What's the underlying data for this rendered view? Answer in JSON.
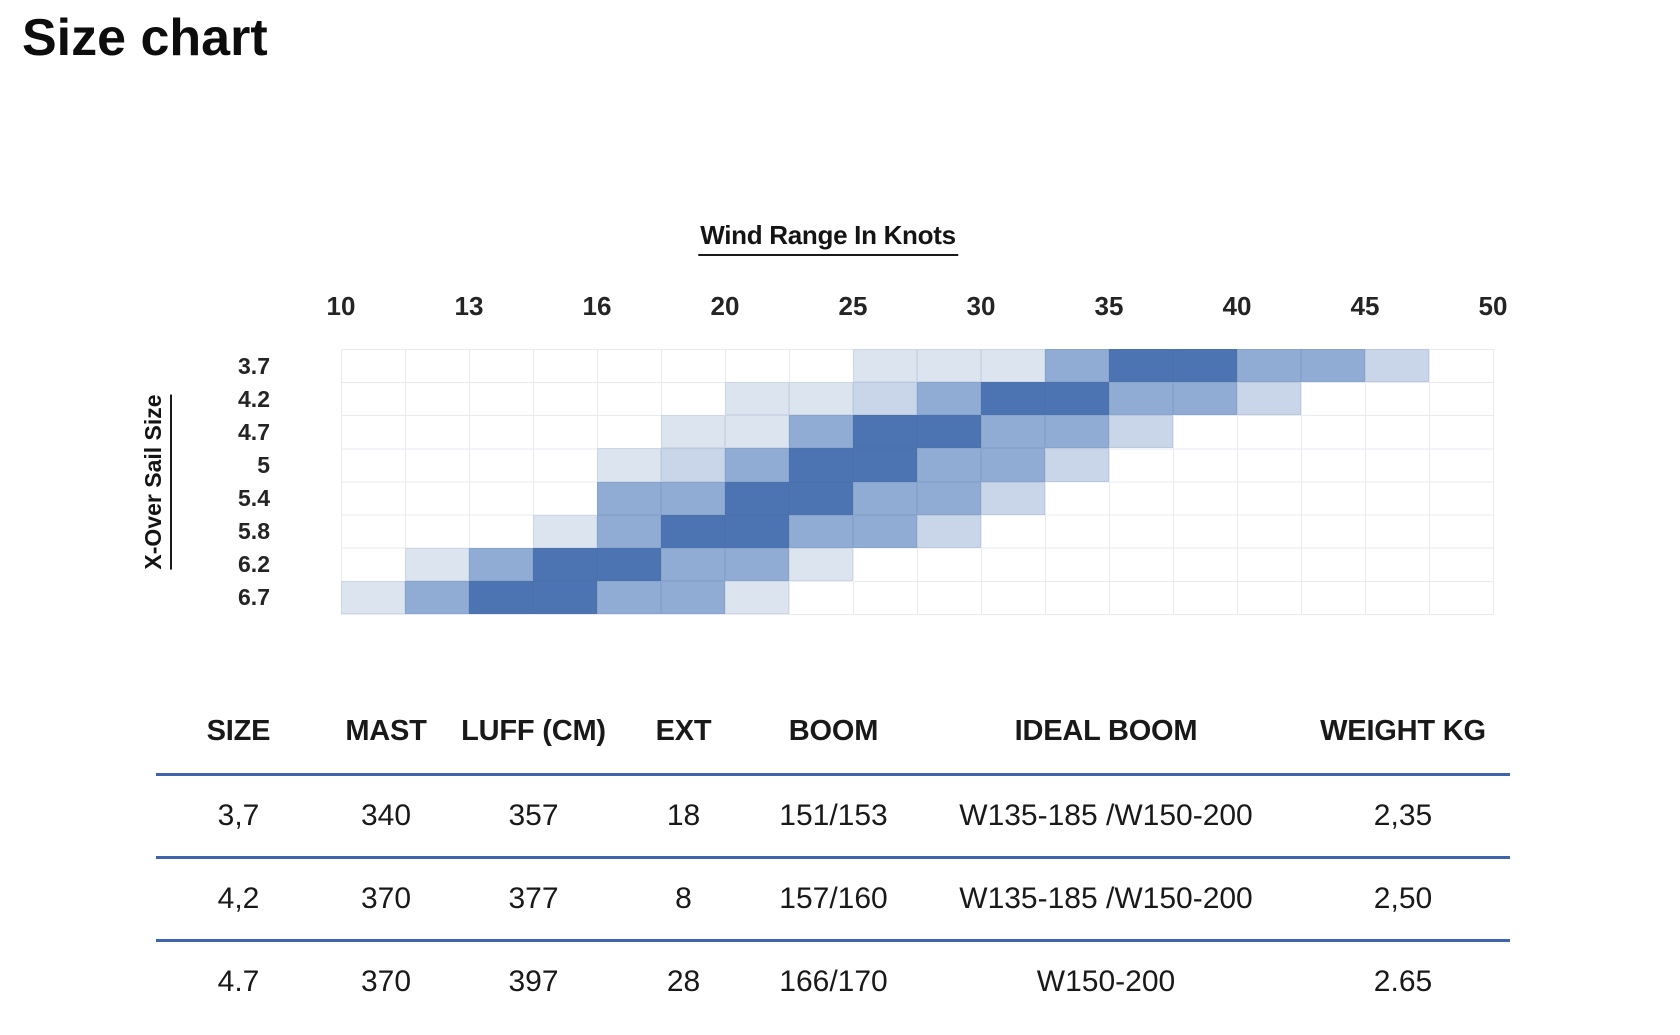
{
  "page": {
    "title": "Size chart"
  },
  "chart_data": {
    "type": "heatmap",
    "title": "Wind Range In Knots",
    "xlabel": "Wind Range In Knots",
    "ylabel": "X-Over Sail Size",
    "x_ticks": [
      "10",
      "13",
      "16",
      "20",
      "25",
      "30",
      "35",
      "40",
      "45",
      "50"
    ],
    "col_edges_knots": [
      10,
      11.5,
      13,
      14.5,
      16,
      18,
      20,
      22.5,
      25,
      27.5,
      30,
      32.5,
      35,
      37.5,
      40,
      42.5,
      45,
      47.5,
      50
    ],
    "legend": "none",
    "grid": true,
    "intensity_palette": {
      "0": "#ffffff",
      "1": "#dce4f0",
      "2": "#c9d5e9",
      "3": "#90abd4",
      "4": "#4d74b2"
    },
    "rows": [
      {
        "label": "3.7",
        "cells": [
          0,
          0,
          0,
          0,
          0,
          0,
          0,
          0,
          1,
          1,
          1,
          3,
          4,
          4,
          3,
          3,
          2,
          0
        ]
      },
      {
        "label": "4.2",
        "cells": [
          0,
          0,
          0,
          0,
          0,
          0,
          1,
          1,
          2,
          3,
          4,
          4,
          3,
          3,
          2,
          0,
          0,
          0
        ]
      },
      {
        "label": "4.7",
        "cells": [
          0,
          0,
          0,
          0,
          0,
          1,
          1,
          3,
          4,
          4,
          3,
          3,
          2,
          0,
          0,
          0,
          0,
          0
        ]
      },
      {
        "label": "5",
        "cells": [
          0,
          0,
          0,
          0,
          1,
          2,
          3,
          4,
          4,
          3,
          3,
          2,
          0,
          0,
          0,
          0,
          0,
          0
        ]
      },
      {
        "label": "5.4",
        "cells": [
          0,
          0,
          0,
          0,
          3,
          3,
          4,
          4,
          3,
          3,
          2,
          0,
          0,
          0,
          0,
          0,
          0,
          0
        ]
      },
      {
        "label": "5.8",
        "cells": [
          0,
          0,
          0,
          1,
          3,
          4,
          4,
          3,
          3,
          2,
          0,
          0,
          0,
          0,
          0,
          0,
          0,
          0
        ]
      },
      {
        "label": "6.2",
        "cells": [
          0,
          1,
          3,
          4,
          4,
          3,
          3,
          1,
          0,
          0,
          0,
          0,
          0,
          0,
          0,
          0,
          0,
          0
        ]
      },
      {
        "label": "6.7",
        "cells": [
          1,
          3,
          4,
          4,
          3,
          3,
          1,
          0,
          0,
          0,
          0,
          0,
          0,
          0,
          0,
          0,
          0,
          0
        ]
      }
    ]
  },
  "table": {
    "divider_color": "#3f64ae",
    "headers": [
      "SIZE",
      "MAST",
      "LUFF (CM)",
      "EXT",
      "BOOM",
      "IDEAL BOOM",
      "WEIGHT KG"
    ],
    "rows": [
      [
        "3,7",
        "340",
        "357",
        "18",
        "151/153",
        "W135-185 /W150-200",
        "2,35"
      ],
      [
        "4,2",
        "370",
        "377",
        "8",
        "157/160",
        "W135-185 /W150-200",
        "2,50"
      ],
      [
        "4.7",
        "370",
        "397",
        "28",
        "166/170",
        "W150-200",
        "2.65"
      ]
    ]
  }
}
